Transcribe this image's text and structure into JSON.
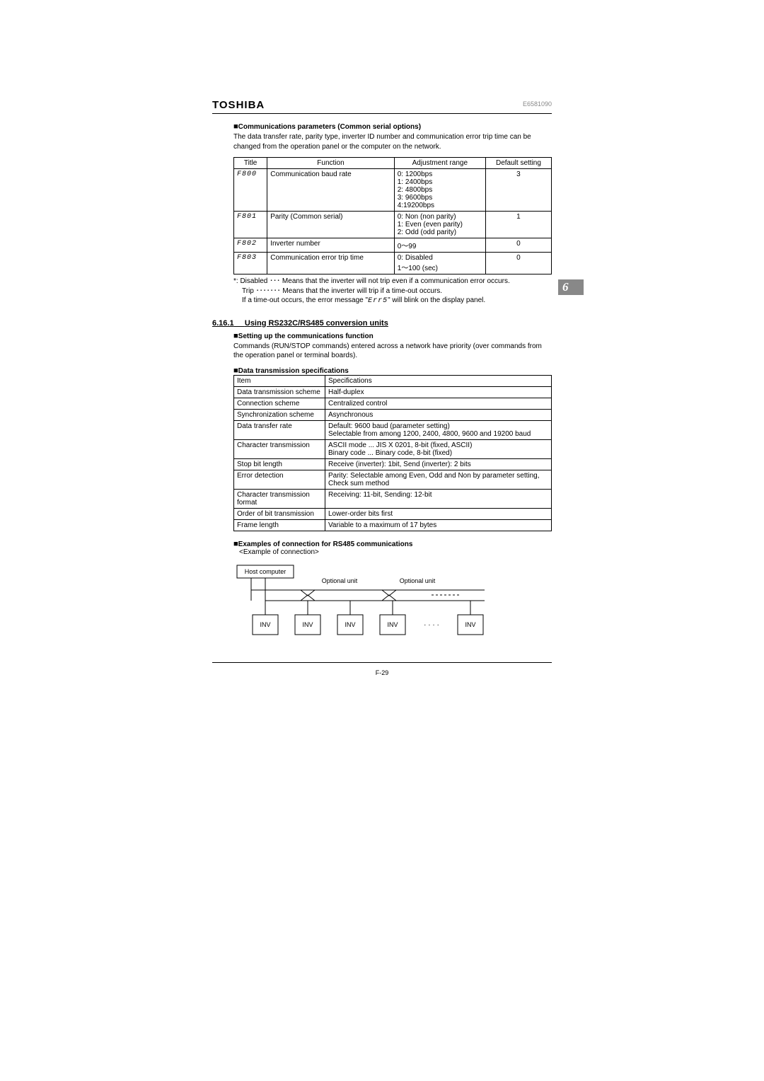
{
  "header": {
    "brand": "TOSHIBA",
    "docnum": "E6581090"
  },
  "chapter_tab": "6",
  "section1": {
    "title": "Communications parameters (Common serial options)",
    "desc": "The data transfer rate, parity type, inverter ID number and communication error trip time can be changed from the operation panel or the computer on the network.",
    "table": {
      "columns": [
        "Title",
        "Function",
        "Adjustment range",
        "Default setting"
      ],
      "rows": [
        {
          "title": "F800",
          "function": "Communication baud rate",
          "range": "0: 1200bps\n1: 2400bps\n2: 4800bps\n3: 9600bps\n4:19200bps",
          "default": "3"
        },
        {
          "title": "F801",
          "function": "Parity (Common serial)",
          "range": "0: Non (non parity)\n1: Even (even parity)\n2: Odd (odd parity)",
          "default": "1"
        },
        {
          "title": "F802",
          "function": "Inverter number",
          "range": "0～99",
          "default": "0"
        },
        {
          "title": "F803",
          "function": "Communication error trip time",
          "range": "0: Disabled\n1～100 (sec)",
          "default": "0"
        }
      ]
    },
    "notes": {
      "line1_lead": "*:  Disabled ･･･ ",
      "line1_rest": "Means that the inverter will not trip even if a communication error occurs.",
      "line2_lead": "Trip ･･･････ ",
      "line2_rest": "Means that the inverter will trip if a time-out occurs.",
      "line3_a": "If a time-out occurs, the error message \"",
      "line3_seg": "Err5",
      "line3_b": "\" will blink on the display panel."
    }
  },
  "section2": {
    "number": "6.16.1",
    "title": "Using RS232C/RS485 conversion units",
    "sub1_title": "Setting up the communications function",
    "sub1_desc": "Commands (RUN/STOP commands) entered across a network have priority (over commands from the operation panel or terminal boards).",
    "sub2_title": "Data transmission specifications",
    "specs": {
      "columns": [
        "Item",
        "Specifications"
      ],
      "rows": [
        {
          "item": "Data transmission scheme",
          "spec": "Half-duplex"
        },
        {
          "item": "Connection scheme",
          "spec": "Centralized control"
        },
        {
          "item": "Synchronization scheme",
          "spec": "Asynchronous"
        },
        {
          "item": "Data transfer rate",
          "spec": "Default: 9600 baud (parameter setting)\nSelectable from among 1200, 2400, 4800, 9600 and 19200 baud"
        },
        {
          "item": "Character transmission",
          "spec": "ASCII mode ... JIS X 0201, 8-bit (fixed, ASCII)\nBinary code ... Binary code, 8-bit (fixed)"
        },
        {
          "item": "Stop bit length",
          "spec": "Receive (inverter): 1bit, Send (inverter): 2 bits"
        },
        {
          "item": "Error detection",
          "spec": "Parity: Selectable among Even, Odd and Non by parameter setting,\nCheck sum method"
        },
        {
          "item": "Character transmission format",
          "spec": "Receiving: 11-bit, Sending: 12-bit"
        },
        {
          "item": "Order of bit transmission",
          "spec": "Lower-order bits first"
        },
        {
          "item": "Frame length",
          "spec": "Variable to a maximum of 17 bytes"
        }
      ]
    },
    "sub3_title": "Examples of connection for RS485 communications",
    "sub3_caption": "<Example of connection>",
    "diagram": {
      "host": "Host computer",
      "opt1": "Optional unit",
      "opt2": "Optional unit",
      "inv": "INV",
      "dots": "· · · ·"
    }
  },
  "footer": {
    "pagenum": "F-29"
  }
}
